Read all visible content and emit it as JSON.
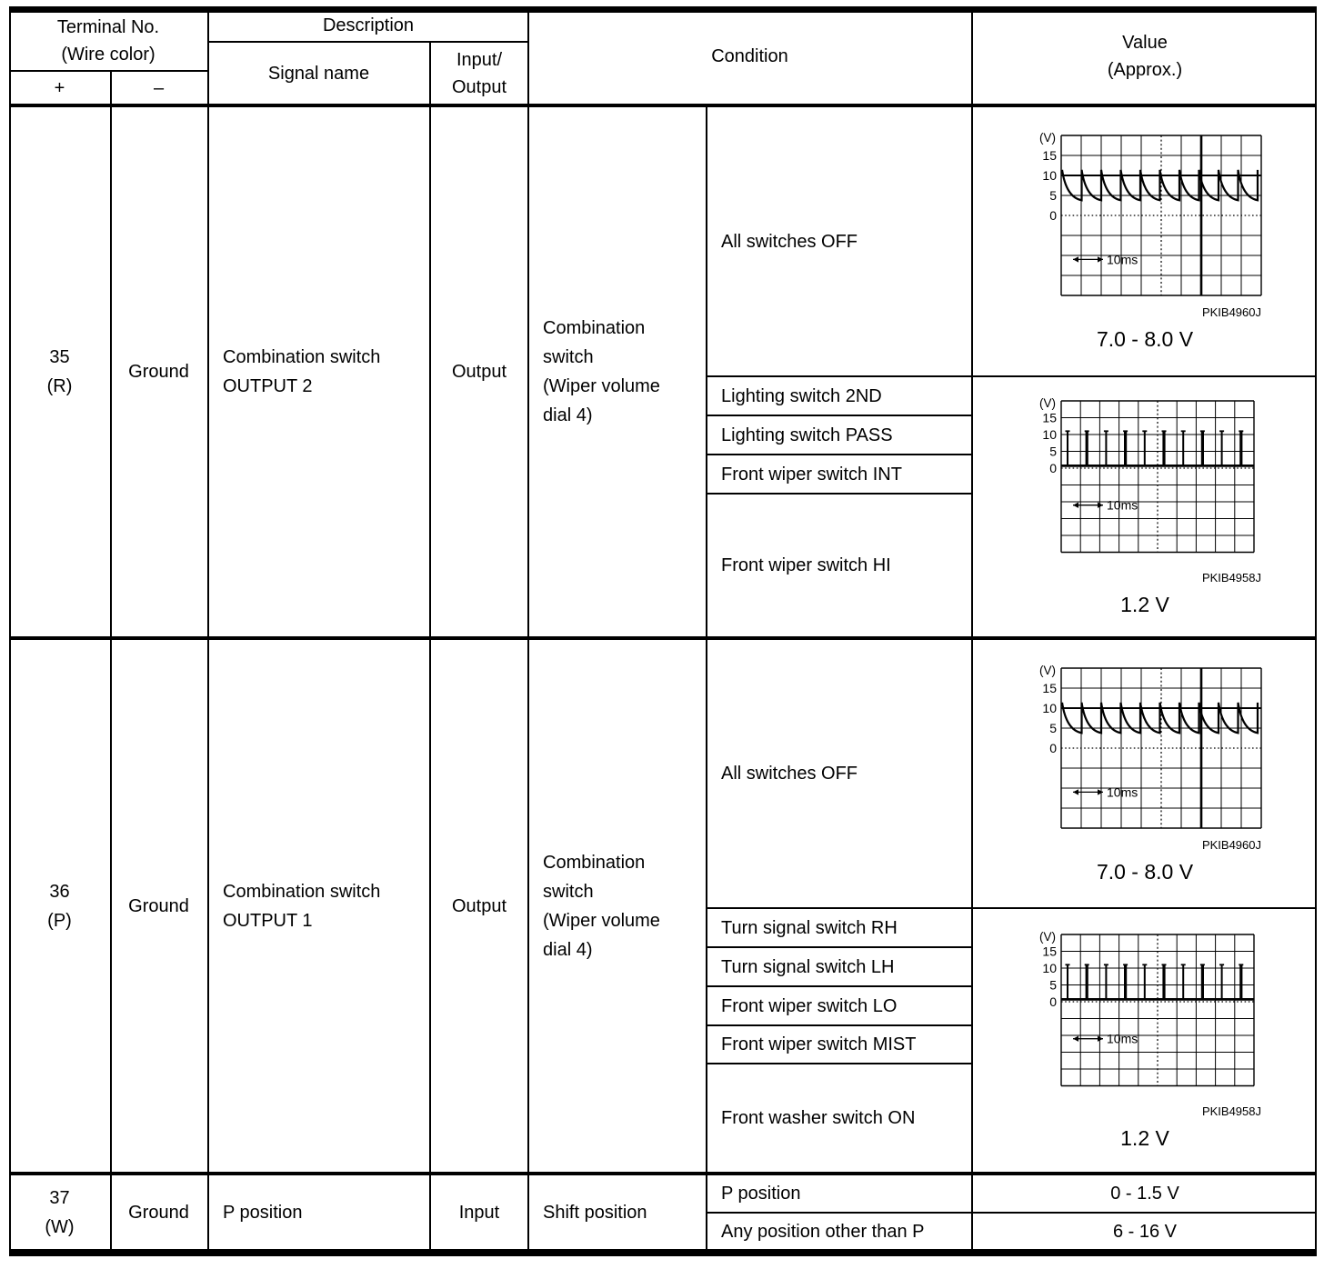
{
  "header": {
    "terminal_no": "Terminal No.\n(Wire color)",
    "plus": "+",
    "minus": "–",
    "description": "Description",
    "signal_name": "Signal name",
    "input_output": "Input/\nOutput",
    "condition": "Condition",
    "value": "Value\n(Approx.)"
  },
  "rows": [
    {
      "terminal": "35\n(R)",
      "ground": "Ground",
      "signal": "Combination switch\nOUTPUT 2",
      "io": "Output",
      "condition_main": "Combination\nswitch\n(Wiper volume\ndial 4)",
      "groups": [
        {
          "conditions": [
            "All switches OFF"
          ],
          "waveform": "sawtooth",
          "figure_id": "PKIB4960J",
          "value": "7.0 - 8.0 V"
        },
        {
          "conditions": [
            "Lighting switch 2ND",
            "Lighting switch PASS",
            "Front wiper switch INT",
            "Front wiper switch HI"
          ],
          "waveform": "pulse",
          "figure_id": "PKIB4958J",
          "value": "1.2 V"
        }
      ]
    },
    {
      "terminal": "36\n(P)",
      "ground": "Ground",
      "signal": "Combination switch\nOUTPUT 1",
      "io": "Output",
      "condition_main": "Combination\nswitch\n(Wiper volume\ndial 4)",
      "groups": [
        {
          "conditions": [
            "All switches OFF"
          ],
          "waveform": "sawtooth",
          "figure_id": "PKIB4960J",
          "value": "7.0 - 8.0 V"
        },
        {
          "conditions": [
            "Turn signal switch RH",
            "Turn signal switch LH",
            "Front wiper switch LO",
            "Front wiper switch MIST",
            "Front washer switch ON"
          ],
          "waveform": "pulse",
          "figure_id": "PKIB4958J",
          "value": "1.2 V"
        }
      ]
    },
    {
      "terminal": "37\n(W)",
      "ground": "Ground",
      "signal": "P position",
      "io": "Input",
      "condition_main": "Shift position",
      "groups": [
        {
          "conditions": [
            "P position"
          ],
          "value": "0 - 1.5 V"
        },
        {
          "conditions": [
            "Any position other than P"
          ],
          "value": "6 - 16 V"
        }
      ]
    }
  ],
  "scope": {
    "unit_label": "(V)",
    "y_ticks": [
      "15",
      "10",
      "5",
      "0"
    ],
    "y_tick_values": [
      15,
      10,
      5,
      0
    ],
    "time_label": "10ms",
    "sawtooth": {
      "level_v": 10,
      "peak_v": 11.4,
      "trough_v": 3.8,
      "teeth": 10
    },
    "pulse": {
      "base_v": 0.7,
      "peak_v": 11,
      "count": 10
    }
  }
}
